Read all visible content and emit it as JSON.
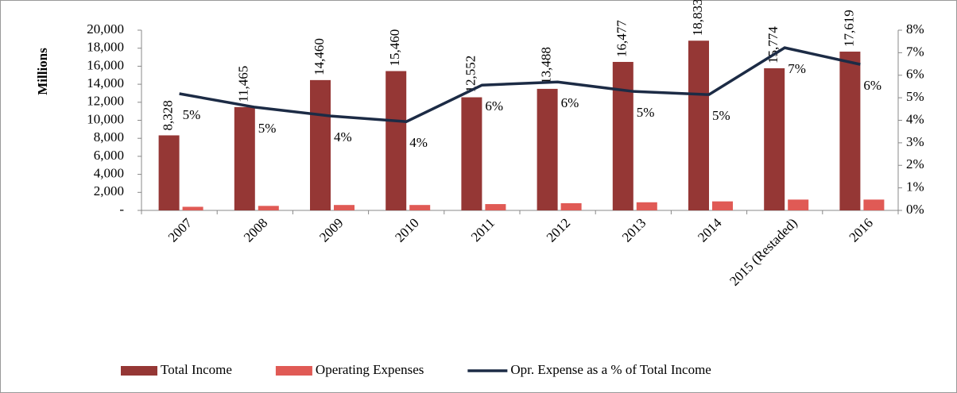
{
  "chart_data": {
    "type": "bar",
    "y_label": "Millions",
    "categories": [
      "2007",
      "2008",
      "2009",
      "2010",
      "2011",
      "2012",
      "2013",
      "2014",
      "2015 (Restaded)",
      "2016"
    ],
    "series": [
      {
        "name": "Total Income",
        "color": "#953735",
        "values": [
          8328,
          11465,
          14460,
          15460,
          12552,
          13488,
          16477,
          18833,
          15774,
          17619
        ],
        "value_labels": [
          "8,328",
          "11,465",
          "14,460",
          "15,460",
          "12,552",
          "13,488",
          "16,477",
          "18,833",
          "15,774",
          "17,619"
        ]
      },
      {
        "name": "Operating Expenses",
        "color": "#e05a55",
        "values": [
          400,
          500,
          600,
          600,
          700,
          800,
          900,
          1000,
          1200,
          1200
        ]
      },
      {
        "name": "Opr. Expense as a % of Total Income",
        "type": "line",
        "axis": "y2",
        "color": "#1c2b45",
        "values": [
          5.18,
          4.58,
          4.19,
          3.94,
          5.56,
          5.7,
          5.28,
          5.14,
          7.22,
          6.48
        ],
        "value_labels": [
          "5%",
          "5%",
          "4%",
          "4%",
          "6%",
          "6%",
          "5%",
          "5%",
          "7%",
          "6%"
        ]
      }
    ],
    "ylim": [
      0,
      20000
    ],
    "yticks": [
      {
        "value": 0,
        "label": "-"
      },
      {
        "value": 2000,
        "label": "2,000"
      },
      {
        "value": 4000,
        "label": "4,000"
      },
      {
        "value": 6000,
        "label": "6,000"
      },
      {
        "value": 8000,
        "label": "8,000"
      },
      {
        "value": 10000,
        "label": "10,000"
      },
      {
        "value": 12000,
        "label": "12,000"
      },
      {
        "value": 14000,
        "label": "14,000"
      },
      {
        "value": 16000,
        "label": "16,000"
      },
      {
        "value": 18000,
        "label": "18,000"
      },
      {
        "value": 20000,
        "label": "20,000"
      }
    ],
    "y2lim": [
      0,
      8
    ],
    "y2ticks": [
      {
        "value": 0,
        "label": "0%"
      },
      {
        "value": 1,
        "label": "1%"
      },
      {
        "value": 2,
        "label": "2%"
      },
      {
        "value": 3,
        "label": "3%"
      },
      {
        "value": 4,
        "label": "4%"
      },
      {
        "value": 5,
        "label": "5%"
      },
      {
        "value": 6,
        "label": "6%"
      },
      {
        "value": 7,
        "label": "7%"
      },
      {
        "value": 8,
        "label": "8%"
      }
    ],
    "legend": "bottom"
  }
}
